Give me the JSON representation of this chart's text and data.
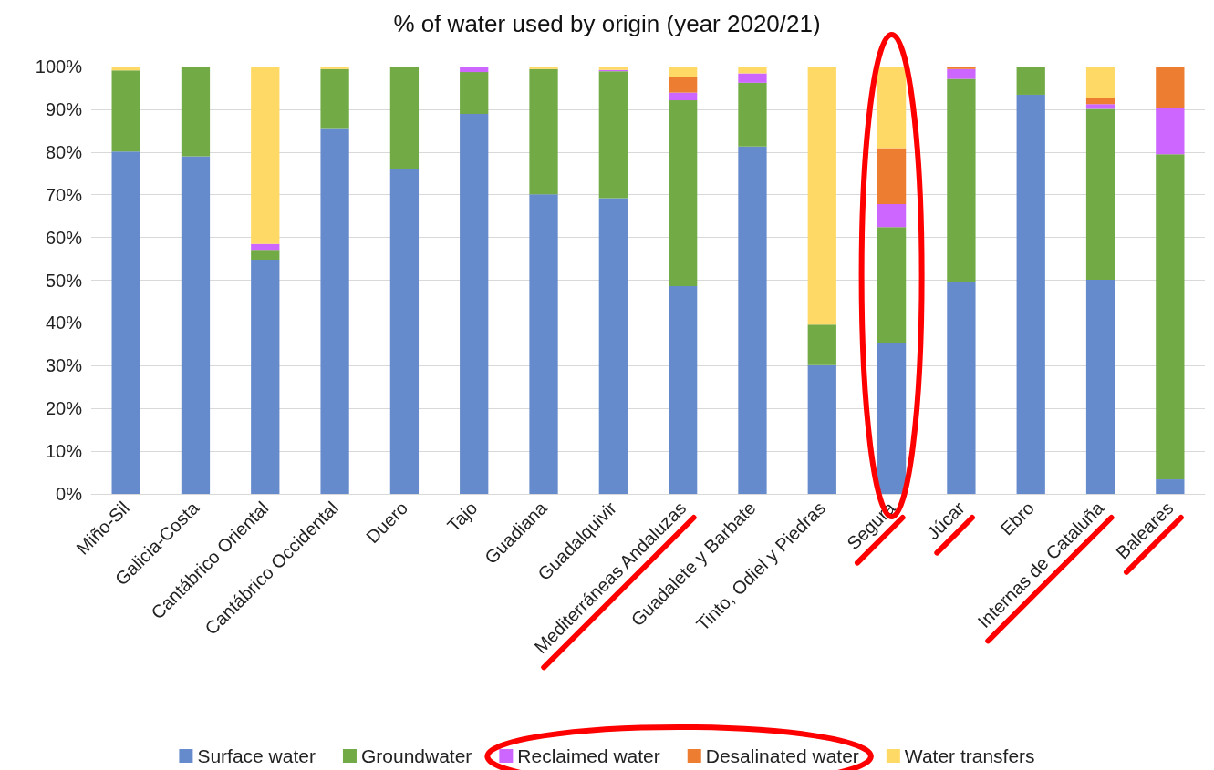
{
  "chart_data": {
    "type": "bar",
    "title": "% of water used by origin (year 2020/21)",
    "stacked": true,
    "grid": "y",
    "legend": "bottom",
    "categories": [
      "Miño-Sil",
      "Galicia-Costa",
      "Cantábrico Oriental",
      "Cantábrico Occidental",
      "Duero",
      "Tajo",
      "Guadiana",
      "Guadalquivir",
      "Mediterráneas Andaluzas",
      "Guadalete y Barbate",
      "Tinto, Odiel y Piedras",
      "Segura",
      "Júcar",
      "Ebro",
      "Internas de Cataluña",
      "Baleares"
    ],
    "ylim": [
      0,
      100
    ],
    "yticks": [
      {
        "value": 0,
        "label": "0%"
      },
      {
        "value": 10,
        "label": "10%"
      },
      {
        "value": 20,
        "label": "20%"
      },
      {
        "value": 30,
        "label": "30%"
      },
      {
        "value": 40,
        "label": "40%"
      },
      {
        "value": 50,
        "label": "50%"
      },
      {
        "value": 60,
        "label": "60%"
      },
      {
        "value": 70,
        "label": "70%"
      },
      {
        "value": 80,
        "label": "80%"
      },
      {
        "value": 90,
        "label": "90%"
      },
      {
        "value": 100,
        "label": "100%"
      }
    ],
    "series": [
      {
        "name": "Surface water",
        "color": "#658bcc",
        "values": [
          80.1,
          79.0,
          54.8,
          85.4,
          76.1,
          88.9,
          70.1,
          69.2,
          48.6,
          81.3,
          30.1,
          35.4,
          49.6,
          93.4,
          50.1,
          3.4
        ]
      },
      {
        "name": "Groundwater",
        "color": "#72ab46",
        "values": [
          19.0,
          21.0,
          2.3,
          14.0,
          23.9,
          9.8,
          29.3,
          29.7,
          43.5,
          14.9,
          9.5,
          27.0,
          47.5,
          6.5,
          40.0,
          76.1
        ]
      },
      {
        "name": "Reclaimed water",
        "color": "#cc66ff",
        "values": [
          0,
          0,
          1.4,
          0,
          0,
          1.3,
          0,
          0.3,
          1.8,
          2.2,
          0,
          5.4,
          2.3,
          null,
          1.1,
          10.8
        ]
      },
      {
        "name": "Desalinated water",
        "color": "#ed7d31",
        "values": [
          0,
          0,
          0,
          0,
          0,
          0,
          0,
          0,
          3.6,
          0,
          0,
          13.1,
          0.6,
          0,
          1.4,
          9.7
        ]
      },
      {
        "name": "Water transfers",
        "color": "#ffd966",
        "values": [
          0.9,
          0,
          41.5,
          0.6,
          0,
          0,
          0.6,
          0.8,
          2.5,
          1.6,
          60.4,
          19.1,
          0,
          0,
          7.4,
          0
        ]
      }
    ]
  }
}
